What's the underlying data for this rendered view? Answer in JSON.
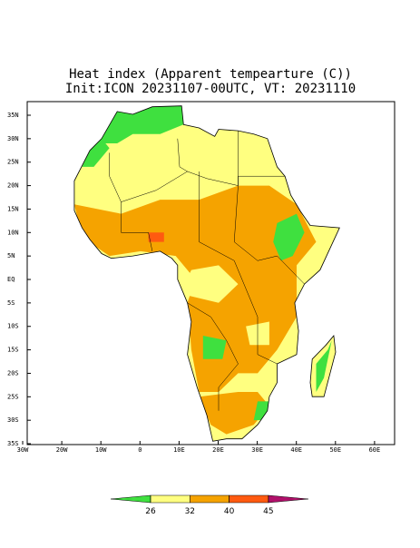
{
  "title": [
    "Heat index (Apparent tempearture (C))",
    "Init:ICON 20231107-00UTC, VT: 20231110"
  ],
  "map": {
    "lat_labels": [
      "35N",
      "30N",
      "25N",
      "20N",
      "15N",
      "10N",
      "5N",
      "EQ",
      "5S",
      "10S",
      "15S",
      "20S",
      "25S",
      "30S",
      "35S"
    ],
    "lon_labels": [
      "30W",
      "20W",
      "10W",
      "0",
      "10E",
      "20E",
      "30E",
      "40E",
      "50E",
      "60E"
    ]
  },
  "colorbar": {
    "ticks": [
      26,
      32,
      40,
      45
    ],
    "colors": [
      "#3fe03f",
      "#ffff80",
      "#f5a300",
      "#ff5a10",
      "#b0106a"
    ]
  }
}
